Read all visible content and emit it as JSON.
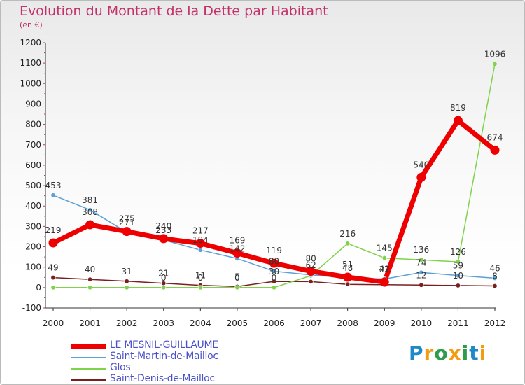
{
  "title": "Evolution du Montant de la Dette par Habitant",
  "subtitle": "(en €)",
  "brand": {
    "letters": [
      "P",
      "r",
      "o",
      "x",
      "i",
      "t",
      "i"
    ],
    "colors": [
      "#1e88c8",
      "#f39c12",
      "#2e9c4c",
      "#f39c12",
      "#2e9c4c",
      "#1e88c8",
      "#f39c12"
    ]
  },
  "chart_data": {
    "type": "line",
    "title": "Evolution du Montant de la Dette par Habitant",
    "ylabel": "(en €)",
    "xlabel": "",
    "x": [
      "2000",
      "2001",
      "2002",
      "2003",
      "2004",
      "2005",
      "2006",
      "2007",
      "2008",
      "2009",
      "2010",
      "2011",
      "2012"
    ],
    "ylim": [
      -100,
      1200
    ],
    "yticks": [
      "-100",
      "0",
      "100",
      "200",
      "300",
      "400",
      "500",
      "600",
      "700",
      "800",
      "900",
      "1000",
      "1100",
      "1200"
    ],
    "grid": false,
    "legend_position": "bottom-left",
    "series": [
      {
        "name": "Saint-Denis-de-Mailloc",
        "color": "#7a1f1f",
        "width": 1.5,
        "values": [
          49,
          40,
          31,
          21,
          11,
          5,
          30,
          29,
          16,
          14,
          12,
          10,
          8
        ],
        "labels": [
          "49",
          "40",
          "31",
          "21",
          "11",
          "5",
          "30",
          "",
          "",
          "",
          "12",
          "10",
          "8"
        ]
      },
      {
        "name": "Glos",
        "color": "#7fd34a",
        "width": 1.5,
        "values": [
          0,
          0,
          0,
          0,
          0,
          0,
          0,
          58,
          216,
          145,
          136,
          126,
          1096
        ],
        "labels": [
          "",
          "",
          "",
          "0",
          "0",
          "0",
          "0",
          "",
          "216",
          "145",
          "136",
          "126",
          "1096"
        ]
      },
      {
        "name": "Saint-Martin-de-Mailloc",
        "color": "#5ba1d6",
        "width": 1.5,
        "values": [
          453,
          381,
          271,
          233,
          184,
          142,
          80,
          62,
          48,
          42,
          74,
          59,
          46
        ],
        "labels": [
          "453",
          "381",
          "271",
          "233",
          "184",
          "142",
          "80",
          "62",
          "48",
          "42",
          "74",
          "59",
          "46"
        ]
      },
      {
        "name": "LE MESNIL-GUILLAUME",
        "color": "#ee0000",
        "width": 7,
        "values": [
          219,
          308,
          275,
          240,
          217,
          169,
          119,
          80,
          51,
          27,
          540,
          819,
          674
        ],
        "labels": [
          "219",
          "308",
          "275",
          "240",
          "217",
          "169",
          "119",
          "80",
          "51",
          "27",
          "540",
          "819",
          "674"
        ]
      }
    ]
  }
}
